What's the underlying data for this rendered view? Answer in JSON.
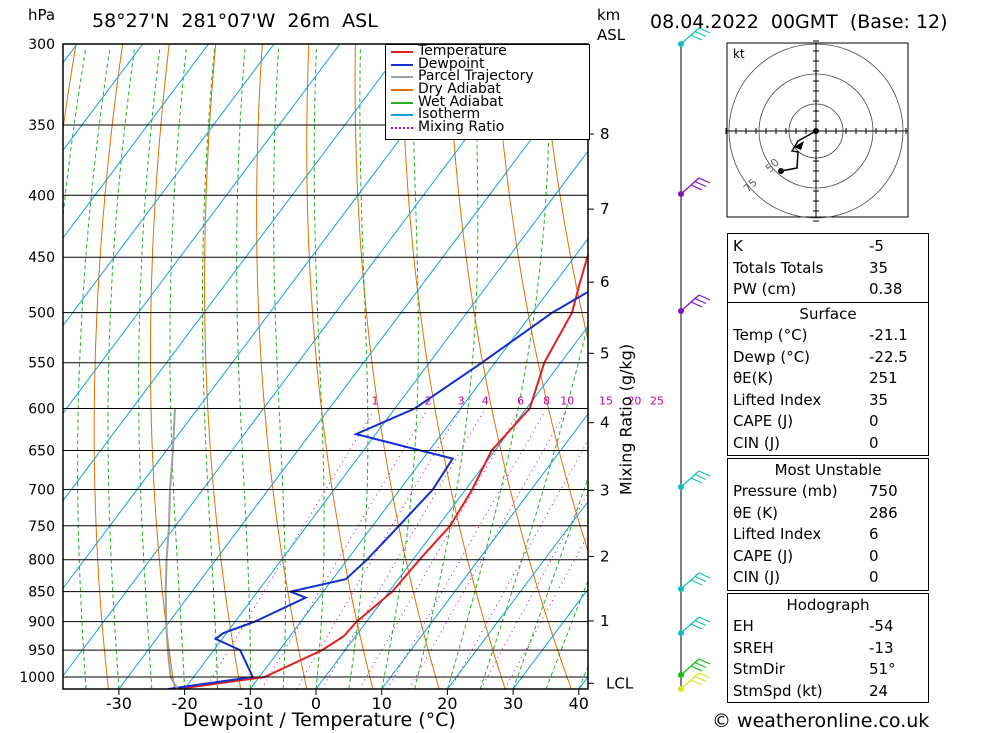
{
  "header": {
    "hpa_label": "hPa",
    "location": "58°27'N  281°07'W  26m  ASL",
    "km_label": "km",
    "asl_label": "ASL",
    "date": "08.04.2022  00GMT  (Base: 12)"
  },
  "legend": [
    {
      "label": "Temperature",
      "color": "#e02020"
    },
    {
      "label": "Dewpoint",
      "color": "#1030d0"
    },
    {
      "label": "Parcel Trajectory",
      "color": "#a0a0a0"
    },
    {
      "label": "Dry Adiabat",
      "color": "#e07000"
    },
    {
      "label": "Wet Adiabat",
      "color": "#20b020"
    },
    {
      "label": "Isotherm",
      "color": "#10a0e0"
    },
    {
      "label": "Mixing Ratio",
      "color": "#c000a0"
    }
  ],
  "chart_data": {
    "type": "line",
    "title": "",
    "xlabel": "Dewpoint / Temperature (°C)",
    "ylabel": "hPa",
    "mixing_ratio_axis_label": "Mixing Ratio (g/kg)",
    "x_ticks": [
      "-30",
      "-20",
      "-10",
      "0",
      "10",
      "20",
      "30",
      "40"
    ],
    "xlim": [
      -40,
      41
    ],
    "pressure_ticks": [
      "300",
      "350",
      "400",
      "450",
      "500",
      "550",
      "600",
      "650",
      "700",
      "750",
      "800",
      "850",
      "900",
      "950",
      "1000"
    ],
    "km_ticks": [
      "8",
      "7",
      "6",
      "5",
      "4",
      "3",
      "2",
      "1"
    ],
    "lcl_label": "LCL",
    "mixing_ratio_labels": [
      "1",
      "2",
      "3",
      "4",
      "6",
      "8",
      "10",
      "15",
      "20",
      "25"
    ],
    "series": [
      {
        "name": "Temperature",
        "color": "#e02020",
        "points": [
          [
            1023,
            -21.1
          ],
          [
            1000,
            -9.2
          ],
          [
            950,
            -3.5
          ],
          [
            925,
            -1.8
          ],
          [
            900,
            -1.5
          ],
          [
            850,
            0.5
          ],
          [
            800,
            1
          ],
          [
            750,
            1.8
          ],
          [
            700,
            1
          ],
          [
            650,
            -0.5
          ],
          [
            600,
            0.5
          ],
          [
            550,
            -2.5
          ],
          [
            500,
            -4
          ],
          [
            475,
            -6
          ],
          [
            450,
            -8
          ],
          [
            400,
            -10.5
          ],
          [
            350,
            -11.5
          ],
          [
            330,
            -8
          ],
          [
            315,
            -6
          ],
          [
            300,
            -4
          ]
        ]
      },
      {
        "name": "Dewpoint",
        "color": "#1030d0",
        "points": [
          [
            1023,
            -22.5
          ],
          [
            1000,
            -11
          ],
          [
            950,
            -16
          ],
          [
            930,
            -21
          ],
          [
            920,
            -20.5
          ],
          [
            900,
            -17
          ],
          [
            860,
            -12
          ],
          [
            850,
            -15
          ],
          [
            830,
            -8
          ],
          [
            800,
            -7
          ],
          [
            750,
            -6
          ],
          [
            700,
            -5
          ],
          [
            660,
            -5.5
          ],
          [
            630,
            -23
          ],
          [
            600,
            -17
          ],
          [
            550,
            -12
          ],
          [
            500,
            -7
          ],
          [
            475,
            -3
          ],
          [
            450,
            -3.5
          ],
          [
            400,
            -6.5
          ],
          [
            350,
            -4.5
          ],
          [
            330,
            -2
          ],
          [
            300,
            1
          ]
        ]
      },
      {
        "name": "Parcel Trajectory",
        "color": "#a0a0a0",
        "points": [
          [
            1023,
            -21.1
          ],
          [
            1000,
            -23.5
          ],
          [
            950,
            -27
          ],
          [
            900,
            -30.5
          ],
          [
            850,
            -34
          ],
          [
            800,
            -37.5
          ],
          [
            750,
            -41
          ],
          [
            700,
            -45
          ],
          [
            650,
            -49
          ],
          [
            600,
            -53.5
          ]
        ]
      }
    ]
  },
  "hodograph": {
    "unit_label": "kt",
    "ring_labels": [
      "50",
      "75"
    ]
  },
  "indices": {
    "rows": [
      {
        "label": "K",
        "value": "-5"
      },
      {
        "label": "Totals Totals",
        "value": "35"
      },
      {
        "label": "PW (cm)",
        "value": "0.38"
      }
    ]
  },
  "surface": {
    "title": "Surface",
    "rows": [
      {
        "label": "Temp (°C)",
        "value": "-21.1"
      },
      {
        "label": "Dewp (°C)",
        "value": "-22.5"
      },
      {
        "label": "θE(K)",
        "value": "251"
      },
      {
        "label": "Lifted Index",
        "value": "35"
      },
      {
        "label": "CAPE (J)",
        "value": "0"
      },
      {
        "label": "CIN (J)",
        "value": "0"
      }
    ]
  },
  "most_unstable": {
    "title": "Most Unstable",
    "rows": [
      {
        "label": "Pressure (mb)",
        "value": "750"
      },
      {
        "label": "θE (K)",
        "value": "286"
      },
      {
        "label": "Lifted Index",
        "value": "6"
      },
      {
        "label": "CAPE (J)",
        "value": "0"
      },
      {
        "label": "CIN (J)",
        "value": "0"
      }
    ]
  },
  "hodograph_table": {
    "title": "Hodograph",
    "rows": [
      {
        "label": "EH",
        "value": "-54"
      },
      {
        "label": "SREH",
        "value": "-13"
      },
      {
        "label": "StmDir",
        "value": "51°"
      },
      {
        "label": "StmSpd (kt)",
        "value": "24"
      }
    ]
  },
  "footer": "© weatheronline.co.uk"
}
